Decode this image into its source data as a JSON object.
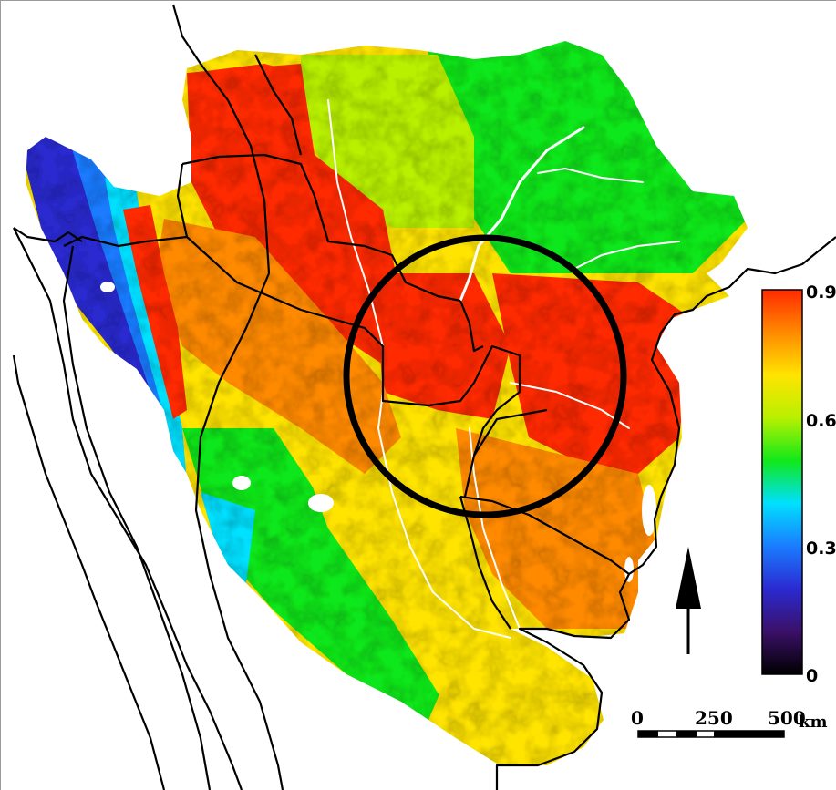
{
  "map": {
    "colorbar": {
      "max_label": "0.9",
      "tick_labels": [
        "0.6",
        "0.3"
      ],
      "min_label": "0",
      "colors": [
        "#000000",
        "#3b1068",
        "#2a2ad0",
        "#1a7cff",
        "#00e0ff",
        "#10e81a",
        "#b8f000",
        "#ffe400",
        "#ff8a00",
        "#ff2a00"
      ]
    },
    "scale_bar": {
      "labels": [
        "0",
        "250",
        "500"
      ],
      "unit": "km"
    },
    "north_arrow": "north-arrow-icon",
    "highlight_circle_color": "#000000",
    "palette": {
      "red": "#ff2a00",
      "orange": "#ff8a00",
      "yellow": "#ffe400",
      "lime": "#b8f000",
      "green": "#10e81a",
      "cyan": "#00e0ff",
      "blue": "#1a7cff",
      "indigo": "#2a2ad0",
      "violet": "#3b1068"
    }
  }
}
